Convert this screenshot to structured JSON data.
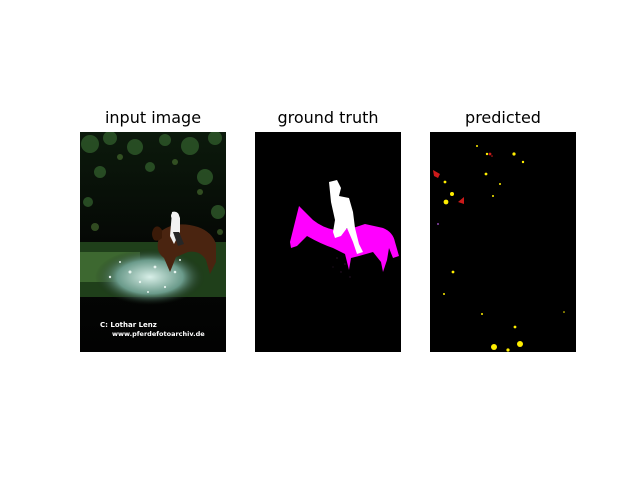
{
  "panels": [
    {
      "title": "input image",
      "image": "photo-horse-rider-splash",
      "watermark_line1": "C:  Lothar Lenz",
      "watermark_line2": "www.pferdefotoarchiv.de"
    },
    {
      "title": "ground truth",
      "image": "segmentation-mask-person-horse",
      "colors": {
        "background": "#000000",
        "person": "#ffffff",
        "horse": "#ff00ff"
      }
    },
    {
      "title": "predicted",
      "image": "segmentation-prediction-noisy",
      "colors": {
        "background": "#000000",
        "noise": "#ffee00",
        "noise_alt": "#cc1a1a"
      }
    }
  ]
}
